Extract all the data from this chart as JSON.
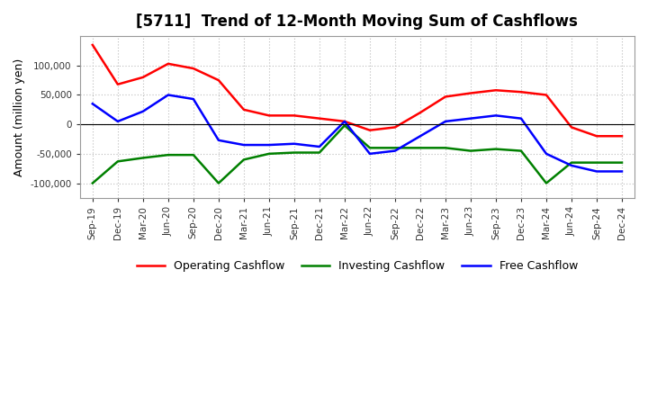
{
  "title": "[5711]  Trend of 12-Month Moving Sum of Cashflows",
  "ylabel": "Amount (million yen)",
  "ylim": [
    -125000,
    150000
  ],
  "yticks": [
    -100000,
    -50000,
    0,
    50000,
    100000
  ],
  "categories": [
    "Sep-19",
    "Dec-19",
    "Mar-20",
    "Jun-20",
    "Sep-20",
    "Dec-20",
    "Mar-21",
    "Jun-21",
    "Sep-21",
    "Dec-21",
    "Mar-22",
    "Jun-22",
    "Sep-22",
    "Dec-22",
    "Mar-23",
    "Jun-23",
    "Sep-23",
    "Dec-23",
    "Mar-24",
    "Jun-24",
    "Sep-24",
    "Dec-24"
  ],
  "operating": [
    135000,
    68000,
    80000,
    103000,
    95000,
    75000,
    25000,
    15000,
    15000,
    10000,
    5000,
    -10000,
    -5000,
    20000,
    47000,
    53000,
    58000,
    55000,
    50000,
    -5000,
    -20000,
    -20000
  ],
  "investing": [
    -100000,
    -63000,
    -57000,
    -52000,
    -52000,
    -100000,
    -60000,
    -50000,
    -48000,
    -48000,
    -2000,
    -40000,
    -40000,
    -40000,
    -40000,
    -45000,
    -42000,
    -45000,
    -100000,
    -65000,
    -65000,
    -65000
  ],
  "free": [
    35000,
    5000,
    22000,
    50000,
    43000,
    -27000,
    -35000,
    -35000,
    -33000,
    -38000,
    5000,
    -50000,
    -45000,
    -20000,
    5000,
    10000,
    15000,
    10000,
    -50000,
    -70000,
    -80000,
    -80000
  ],
  "operating_color": "#ff0000",
  "investing_color": "#008000",
  "free_color": "#0000ff",
  "background_color": "#ffffff",
  "grid_color": "#bbbbbb",
  "linewidth": 1.8
}
